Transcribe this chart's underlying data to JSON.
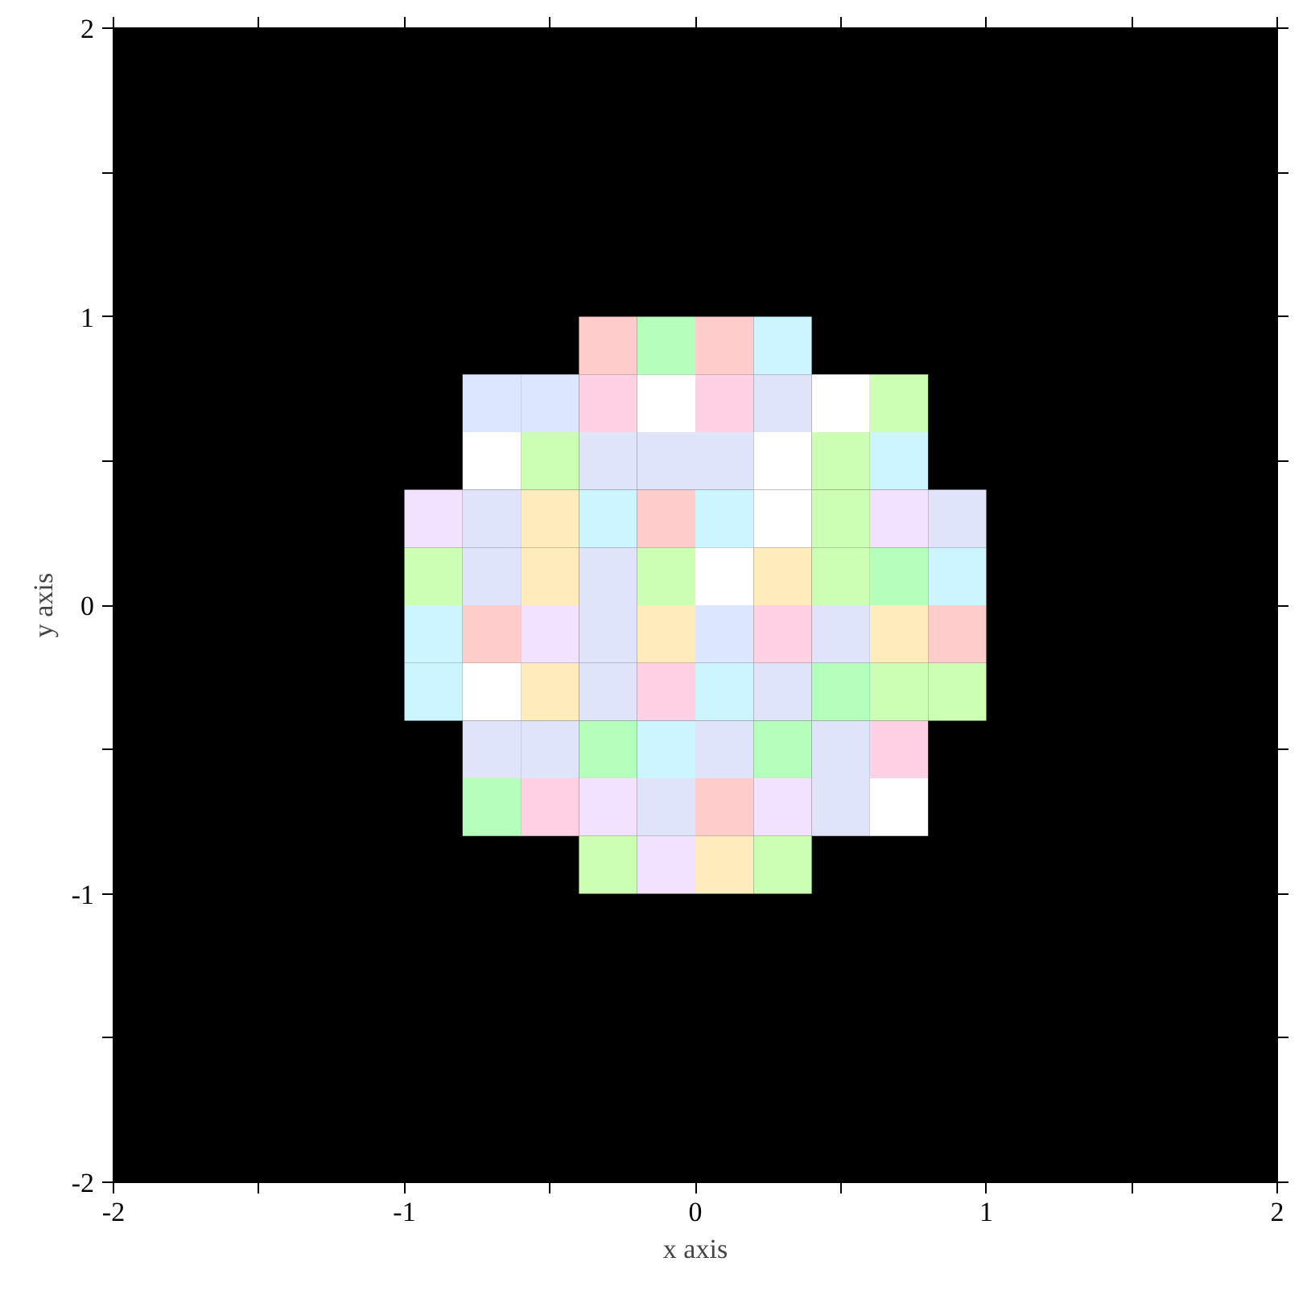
{
  "chart_data": {
    "type": "scatter",
    "xlabel": "x axis",
    "ylabel": "y axis",
    "marker": "square",
    "grid": false,
    "xlim": [
      -2,
      2
    ],
    "ylim": [
      -2,
      2
    ],
    "xticks": [
      -2,
      {
        "value": -1.5,
        "label": null
      },
      -1,
      {
        "value": -0.5,
        "label": null
      },
      0,
      {
        "value": 0.5,
        "label": null
      },
      1,
      {
        "value": 1.5,
        "label": null
      },
      2
    ],
    "yticks": [
      -2,
      {
        "value": -1.5,
        "label": null
      },
      -1,
      {
        "value": -0.5,
        "label": null
      },
      0,
      {
        "value": 0.5,
        "label": null
      },
      1,
      {
        "value": 1.5,
        "label": null
      },
      2
    ],
    "series": [
      {
        "x": [
          -0.3,
          -0.1,
          0.1,
          0.3,
          -0.7,
          -0.5,
          -0.3,
          -0.1,
          0.1,
          0.3,
          0.5,
          0.7,
          -0.7,
          -0.5,
          -0.3,
          -0.1,
          0.1,
          0.3,
          0.5,
          0.7,
          -0.9,
          -0.7,
          -0.5,
          -0.3,
          -0.1,
          0.1,
          0.3,
          0.5,
          0.7,
          0.9,
          -0.9,
          -0.7,
          -0.5,
          -0.3,
          -0.1,
          0.1,
          0.3,
          0.5,
          0.7,
          0.9,
          -0.9,
          -0.7,
          -0.5,
          -0.3,
          -0.1,
          0.1,
          0.3,
          0.5,
          0.7,
          0.9,
          -0.9,
          -0.7,
          -0.5,
          -0.3,
          -0.1,
          0.1,
          0.3,
          0.5,
          0.7,
          0.9,
          -0.7,
          -0.5,
          -0.3,
          -0.1,
          0.1,
          0.3,
          0.5,
          0.7,
          -0.7,
          -0.5,
          -0.3,
          -0.1,
          0.1,
          0.3,
          0.5,
          0.7,
          -0.3,
          -0.1,
          0.1,
          0.3
        ],
        "values": [
          0.9,
          0.9,
          0.9,
          0.9,
          0.7,
          0.7,
          0.7,
          0.7,
          0.7,
          0.7,
          0.7,
          0.7,
          0.5,
          0.5,
          0.5,
          0.5,
          0.5,
          0.5,
          0.5,
          0.5,
          0.3,
          0.3,
          0.3,
          0.3,
          0.3,
          0.3,
          0.3,
          0.3,
          0.3,
          0.3,
          0.1,
          0.1,
          0.1,
          0.1,
          0.1,
          0.1,
          0.1,
          0.1,
          0.1,
          0.1,
          -0.1,
          -0.1,
          -0.1,
          -0.1,
          -0.1,
          -0.1,
          -0.1,
          -0.1,
          -0.1,
          -0.1,
          -0.3,
          -0.3,
          -0.3,
          -0.3,
          -0.3,
          -0.3,
          -0.3,
          -0.3,
          -0.3,
          -0.3,
          -0.5,
          -0.5,
          -0.5,
          -0.5,
          -0.5,
          -0.5,
          -0.5,
          -0.5,
          -0.7,
          -0.7,
          -0.7,
          -0.7,
          -0.7,
          -0.7,
          -0.7,
          -0.7,
          -0.9,
          -0.9,
          -0.9,
          -0.9
        ],
        "colors": [
          "#ffcccc",
          "#b3ffbb",
          "#ffcccc",
          "#ccf5ff",
          "#dce6ff",
          "#dce6ff",
          "#ffd1e3",
          "#ffffff",
          "#ffd1e3",
          "#e0e4fa",
          "#ffffff",
          "#ccffb3",
          "#ffffff",
          "#ccffb3",
          "#e0e4fa",
          "#e0e4fa",
          "#e0e4fa",
          "#ffffff",
          "#ccffb3",
          "#ccf5ff",
          "#f2e2ff",
          "#e0e4fa",
          "#ffecbd",
          "#ccf5ff",
          "#ffcccc",
          "#ccf5ff",
          "#ffffff",
          "#ccffb3",
          "#f2e2ff",
          "#e0e4fa",
          "#ccffb3",
          "#e0e4fa",
          "#ffecbd",
          "#e0e4fa",
          "#ccffb3",
          "#ffffff",
          "#ffecbd",
          "#ccffb3",
          "#b3ffbb",
          "#ccf5ff",
          "#ccf5ff",
          "#ffcccc",
          "#f2e2ff",
          "#e0e4fa",
          "#ffecbd",
          "#dce6ff",
          "#ffd1e3",
          "#e0e4fa",
          "#ffecbd",
          "#ffcccc",
          "#ccf5ff",
          "#ffffff",
          "#ffecbd",
          "#e0e4fa",
          "#ffd1e3",
          "#ccf5ff",
          "#e0e4fa",
          "#b3ffbb",
          "#ccffb3",
          "#ccffb3",
          "#e0e4fa",
          "#e0e4fa",
          "#b3ffbb",
          "#ccf5ff",
          "#e0e4fa",
          "#b3ffbb",
          "#e0e4fa",
          "#ffd1e3",
          "#b3ffbb",
          "#ffd1e3",
          "#f2e2ff",
          "#e0e4fa",
          "#ffcccc",
          "#f2e2ff",
          "#e0e4fa",
          "#ffffff",
          "#ccffb3",
          "#f2e2ff",
          "#ffecbd",
          "#ccffb3"
        ]
      }
    ]
  }
}
